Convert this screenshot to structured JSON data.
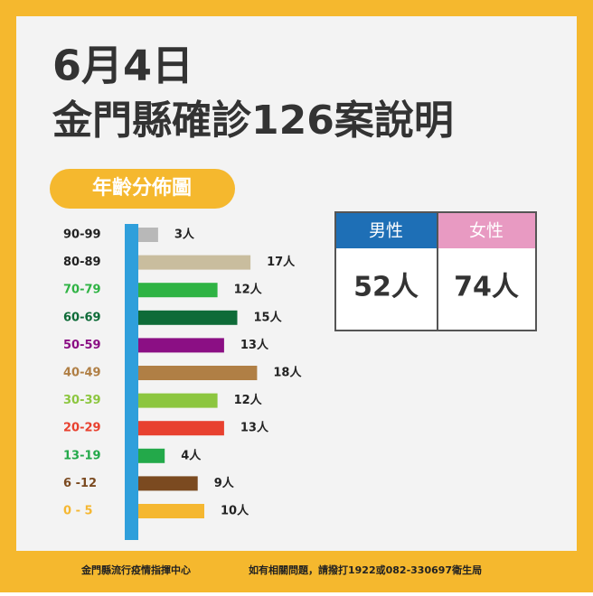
{
  "header": {
    "date": "6月4日",
    "title": "金門縣確診126案說明",
    "badge": "年齡分佈圖"
  },
  "chart_data": {
    "type": "bar",
    "orientation": "horizontal",
    "categories": [
      "90-99",
      "80-89",
      "70-79",
      "60-69",
      "50-59",
      "40-49",
      "30-39",
      "20-29",
      "13-19",
      "6 -12",
      "0 - 5"
    ],
    "values": [
      3,
      17,
      12,
      15,
      13,
      18,
      12,
      13,
      4,
      9,
      10
    ],
    "value_labels": [
      "3人",
      "17人",
      "12人",
      "15人",
      "13人",
      "18人",
      "12人",
      "13人",
      "4人",
      "9人",
      "10人"
    ],
    "colors": [
      "#b8b8b8",
      "#c9bd9e",
      "#2fb344",
      "#0e6b38",
      "#8b0f84",
      "#b07f45",
      "#8cc63f",
      "#e8412f",
      "#23a94a",
      "#7b4a20",
      "#f5b731"
    ],
    "label_colors": [
      "#222222",
      "#222222",
      "#2fb344",
      "#0e6b38",
      "#8b0f84",
      "#b07f45",
      "#8cc63f",
      "#e8412f",
      "#23a94a",
      "#7b4a20",
      "#f5b731"
    ]
  },
  "gender_table": {
    "headers": [
      "男性",
      "女性"
    ],
    "cells": [
      "52人",
      "74人"
    ]
  },
  "footer": {
    "left": "金門縣流行疫情指揮中心",
    "right": "如有相關問題，請撥打1922或082-330697衛生局"
  }
}
